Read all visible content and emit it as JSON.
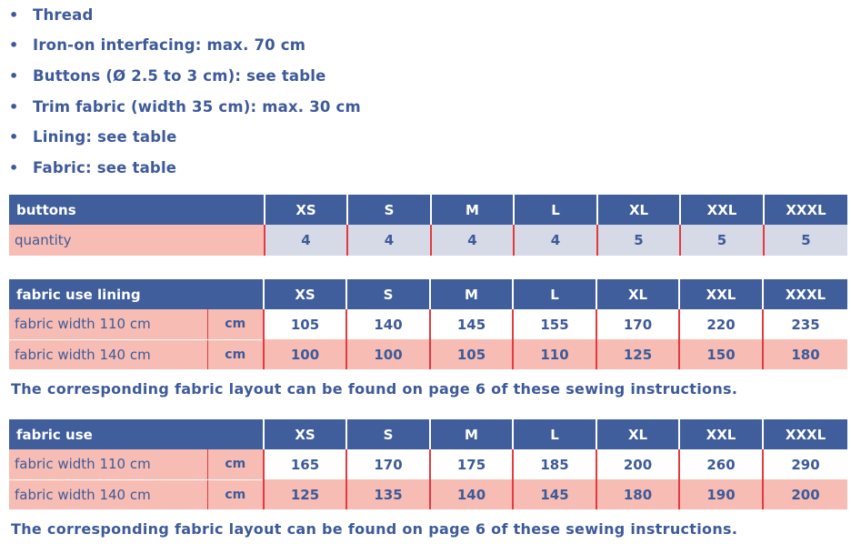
{
  "bullets": [
    "Thread",
    "Iron-on interfacing: max. 70 cm",
    "Buttons (Ø 2.5 to 3 cm): see table",
    "Trim fabric (width 35 cm): max. 30 cm",
    "Lining: see table",
    "Fabric: see table"
  ],
  "bullet_symbol": "•",
  "sizes": [
    "XS",
    "S",
    "M",
    "L",
    "XL",
    "XXL",
    "XXXL"
  ],
  "buttons_table": {
    "header": "buttons",
    "row_label": "quantity",
    "values": [
      "4",
      "4",
      "4",
      "4",
      "5",
      "5",
      "5"
    ]
  },
  "lining_table": {
    "header": "fabric use lining",
    "rows": [
      {
        "label": "fabric width 110 cm",
        "unit": "cm",
        "values": [
          "105",
          "140",
          "145",
          "155",
          "170",
          "220",
          "235"
        ]
      },
      {
        "label": "fabric width 140 cm",
        "unit": "cm",
        "values": [
          "100",
          "100",
          "105",
          "110",
          "125",
          "150",
          "180"
        ]
      }
    ],
    "note": "The corresponding fabric layout can be found on page 6 of these sewing instructions."
  },
  "fabric_table": {
    "header": "fabric use",
    "rows": [
      {
        "label": "fabric width 110 cm",
        "unit": "cm",
        "values": [
          "165",
          "170",
          "175",
          "185",
          "200",
          "260",
          "290"
        ]
      },
      {
        "label": "fabric width 140 cm",
        "unit": "cm",
        "values": [
          "125",
          "135",
          "140",
          "145",
          "180",
          "190",
          "200"
        ]
      }
    ],
    "note": "The corresponding fabric layout can be found on page 6 of these sewing instructions."
  },
  "colors": {
    "header_bg": "#3f5e9b",
    "label_bg": "#f7bdb4",
    "quantity_bg": "#d6d9e6",
    "divider": "#e5393f",
    "text": "#3d5a99"
  }
}
